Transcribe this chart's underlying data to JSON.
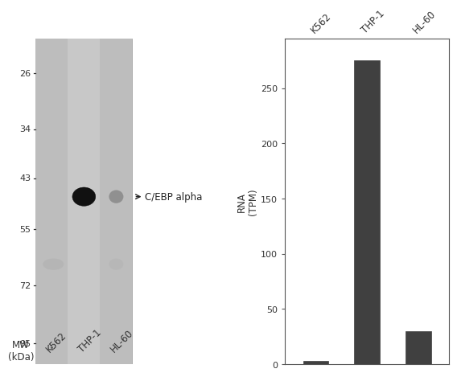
{
  "wb_panel": {
    "gel_color": "#c0c0c0",
    "mw_labels": [
      "95",
      "72",
      "55",
      "43",
      "34",
      "26"
    ],
    "mw_values": [
      95,
      72,
      55,
      43,
      34,
      26
    ],
    "lanes": [
      "K562",
      "THP-1",
      "HL-60"
    ],
    "band_mw": 47,
    "band_label": "C/EBP alpha",
    "mw_header": "MW\n(kDa)",
    "ymin": 22,
    "ymax": 105
  },
  "bar_panel": {
    "categories": [
      "K562",
      "THP-1",
      "HL-60"
    ],
    "values": [
      3,
      275,
      30
    ],
    "bar_color": "#404040",
    "ylabel": "RNA\n(TPM)",
    "yticks": [
      0,
      50,
      100,
      150,
      200,
      250
    ],
    "ymax": 295,
    "bar_width": 0.5
  },
  "bg_color": "#ffffff",
  "label_fontsize": 8.5,
  "tick_fontsize": 8
}
